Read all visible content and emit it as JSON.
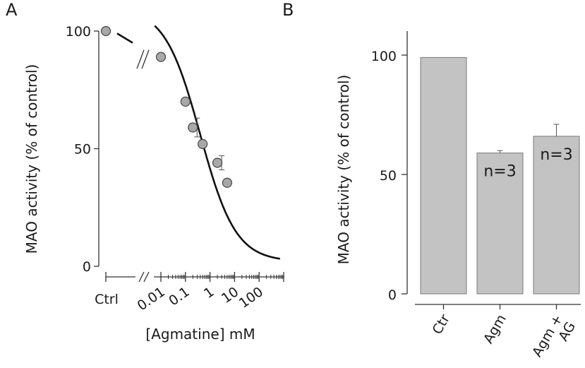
{
  "chart_data": [
    {
      "panel": "A",
      "type": "scatter",
      "title": "",
      "xlabel": "[Agmatine] mM",
      "ylabel": "MAO activity (% of control)",
      "x_scale": "log",
      "control_label": "Ctrl",
      "control_point": {
        "x": "Ctrl",
        "y": 100
      },
      "yticks": [
        0,
        50,
        100
      ],
      "ylim": [
        0,
        100
      ],
      "xticks": [
        0.01,
        0.1,
        1,
        10,
        100
      ],
      "xtick_labels": [
        "0.01",
        "0.1",
        "1",
        "10",
        "100"
      ],
      "xlim": [
        0.01,
        1000
      ],
      "points": [
        {
          "x": 0.01,
          "y": 89,
          "err": 0
        },
        {
          "x": 0.1,
          "y": 70,
          "err": 0
        },
        {
          "x": 0.2,
          "y": 59,
          "err": 4
        },
        {
          "x": 0.5,
          "y": 52,
          "err": 0
        },
        {
          "x": 2,
          "y": 44,
          "err": 3
        },
        {
          "x": 5,
          "y": 35.5,
          "err": 0
        }
      ],
      "fit_curve": "sigmoid",
      "grid": false,
      "legend": "none"
    },
    {
      "panel": "B",
      "type": "bar",
      "title": "",
      "xlabel": "",
      "ylabel": "MAO activity (% of control)",
      "categories": [
        "Ctr",
        "Agm",
        "Agm + AG"
      ],
      "category_lines": [
        [
          "Ctr"
        ],
        [
          "Agm"
        ],
        [
          "Agm +",
          "AG"
        ]
      ],
      "values": [
        99,
        59,
        66
      ],
      "errors": [
        0,
        1,
        5
      ],
      "annotations": [
        "",
        "n=3",
        "n=3"
      ],
      "yticks": [
        0,
        50,
        100
      ],
      "ylim": [
        0,
        110
      ],
      "bar_color": "#c3c3c3",
      "grid": false,
      "legend": "none"
    }
  ]
}
